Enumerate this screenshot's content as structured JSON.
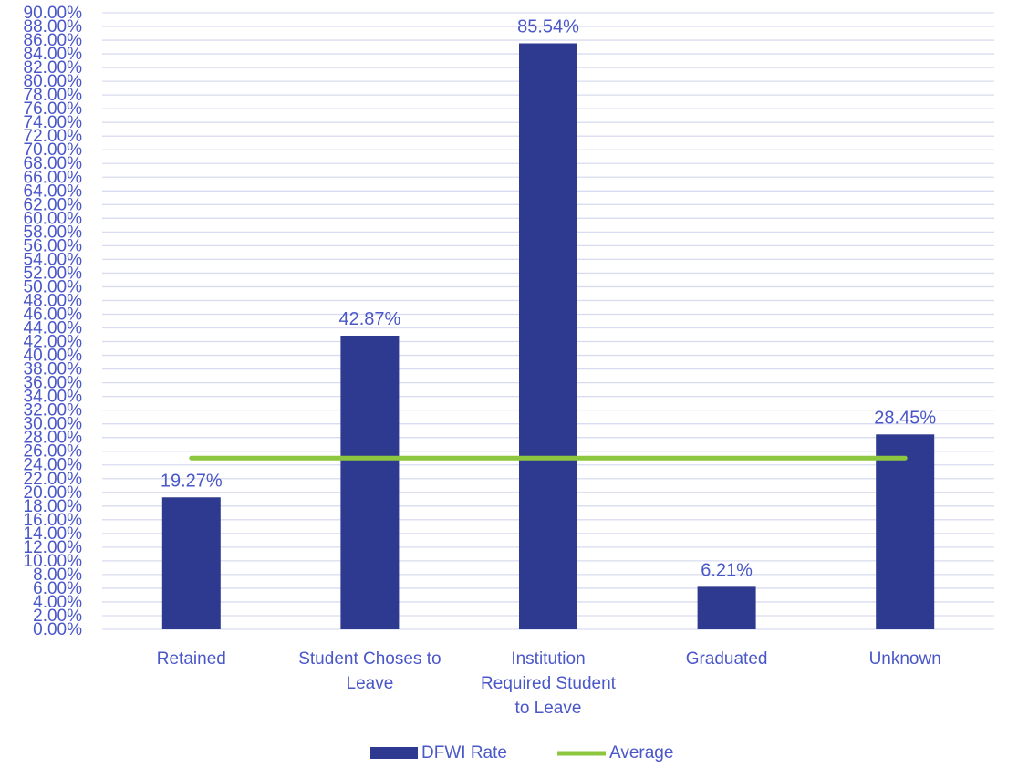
{
  "chart_data": {
    "type": "bar",
    "categories": [
      [
        "Retained"
      ],
      [
        "Student Choses to",
        "Leave"
      ],
      [
        "Institution",
        "Required Student",
        "to Leave"
      ],
      [
        "Graduated"
      ],
      [
        "Unknown"
      ]
    ],
    "series": [
      {
        "name": "DFWI Rate",
        "type": "bar",
        "values": [
          19.27,
          42.87,
          85.54,
          6.21,
          28.45
        ],
        "data_labels": [
          "19.27%",
          "42.87%",
          "85.54%",
          "6.21%",
          "28.45%"
        ],
        "color": "#2e3a8f"
      },
      {
        "name": "Average",
        "type": "line",
        "values": [
          25.0,
          25.0,
          25.0,
          25.0,
          25.0
        ],
        "color": "#8dc63f"
      }
    ],
    "ylim": [
      0,
      90
    ],
    "y_tick_step": 2,
    "y_tick_format": "percent-2dp",
    "grid": true,
    "legend_position": "bottom",
    "colors": {
      "grid": "#d9dcf0",
      "text": "#4a57c8"
    }
  }
}
